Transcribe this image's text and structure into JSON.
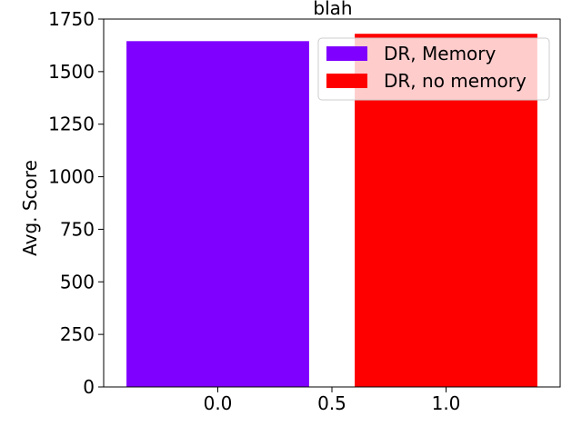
{
  "chart_data": {
    "type": "bar",
    "title": "blah",
    "xlabel": "",
    "ylabel": "Avg. Score",
    "xlim": [
      -0.5,
      1.5
    ],
    "ylim": [
      0,
      1750
    ],
    "x_ticks": [
      "0.0",
      "0.5",
      "1.0"
    ],
    "x_tick_values": [
      0.0,
      0.5,
      1.0
    ],
    "y_ticks": [
      "0",
      "250",
      "500",
      "750",
      "1000",
      "1250",
      "1500",
      "1750"
    ],
    "y_tick_values": [
      0,
      250,
      500,
      750,
      1000,
      1250,
      1500,
      1750
    ],
    "bar_width": 0.8,
    "series": [
      {
        "name": "DR, Memory",
        "x": 0.0,
        "value": 1645,
        "color": "#7f00ff"
      },
      {
        "name": "DR, no memory",
        "x": 1.0,
        "value": 1680,
        "color": "#ff0000"
      }
    ],
    "legend_position": "upper-right",
    "grid": false
  }
}
